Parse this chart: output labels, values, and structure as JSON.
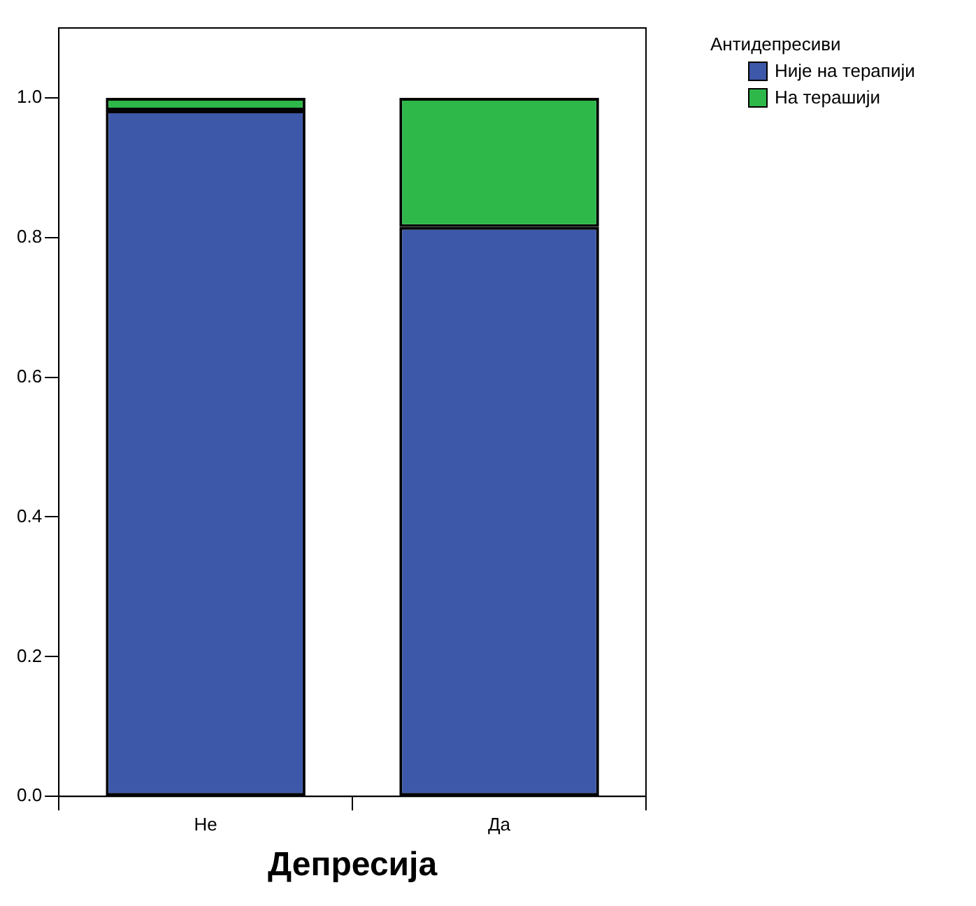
{
  "chart_data": {
    "type": "bar",
    "stacked": true,
    "xlabel": "Депресија",
    "legend_title": "Антидепресиви",
    "legend": "top right",
    "grid": false,
    "categories": [
      "Не",
      "Да"
    ],
    "series": [
      {
        "name": "Није на терапији",
        "color": "#3d58a8",
        "values": [
          0.982,
          0.815
        ]
      },
      {
        "name": "На терашији",
        "color": "#2eb84a",
        "values": [
          0.018,
          0.185
        ]
      }
    ],
    "ylim": [
      0,
      1.1
    ],
    "yticks": [
      {
        "value": 0,
        "label": "0.0"
      },
      0.2,
      0.4,
      0.6,
      0.8,
      {
        "value": 1,
        "label": "1.0"
      }
    ]
  }
}
